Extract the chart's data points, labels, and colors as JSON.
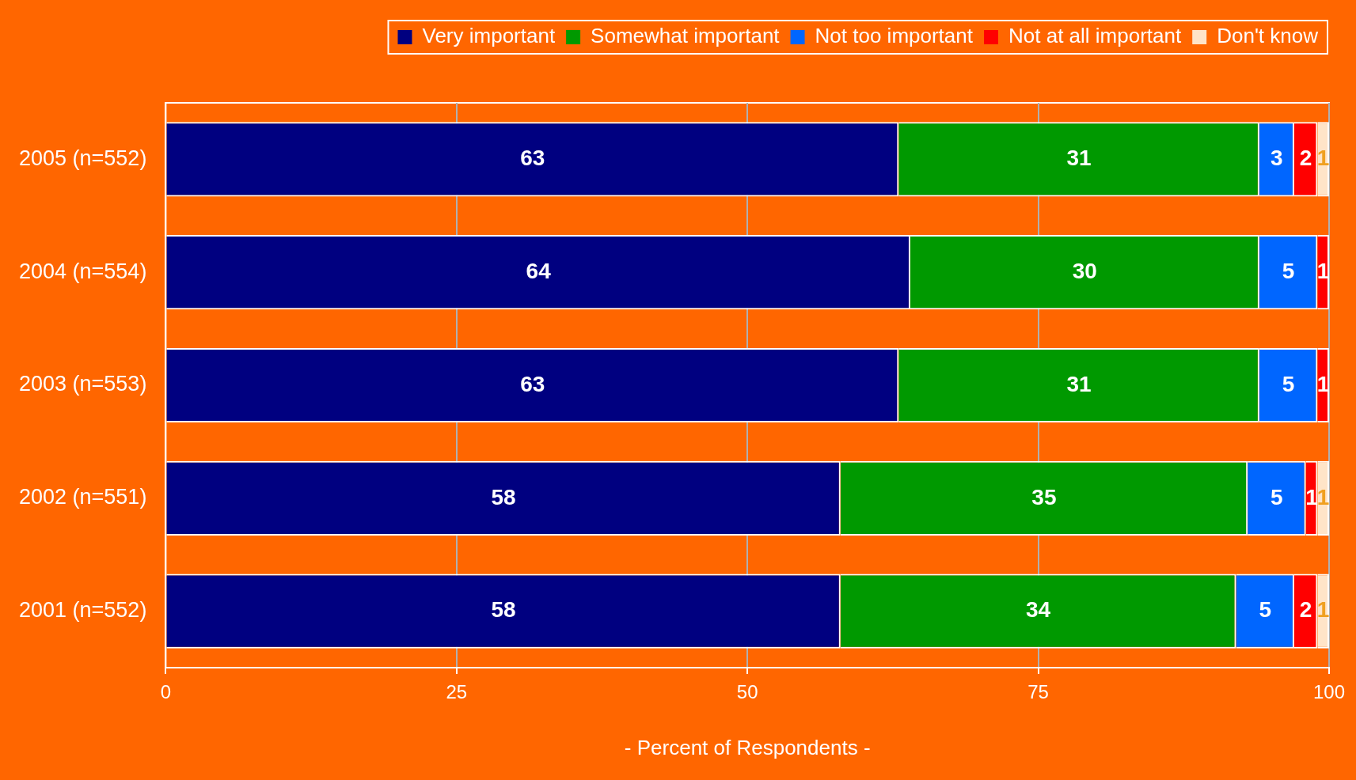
{
  "chart_data": {
    "type": "bar",
    "orientation": "horizontal",
    "stacked": true,
    "xlabel": "- Percent of Respondents -",
    "categories": [
      "2005 (n=552)",
      "2004 (n=554)",
      "2003 (n=553)",
      "2002 (n=551)",
      "2001 (n=552)"
    ],
    "series": [
      {
        "name": "Very important",
        "color": "#000080",
        "values": [
          63,
          64,
          63,
          58,
          58
        ]
      },
      {
        "name": "Somewhat important",
        "color": "#009900",
        "values": [
          31,
          30,
          31,
          35,
          34
        ]
      },
      {
        "name": "Not too important",
        "color": "#0066ff",
        "values": [
          3,
          5,
          5,
          5,
          5
        ]
      },
      {
        "name": "Not at all important",
        "color": "#ff0000",
        "values": [
          2,
          1,
          1,
          1,
          2
        ]
      },
      {
        "name": "Don't know",
        "color": "#ffe4c8",
        "values": [
          1,
          null,
          null,
          1,
          1
        ]
      }
    ],
    "xlim": [
      0,
      100
    ],
    "xticks": [
      0,
      25,
      50,
      75,
      100
    ],
    "grid": "x",
    "legend": "top right",
    "data_labels": true
  }
}
